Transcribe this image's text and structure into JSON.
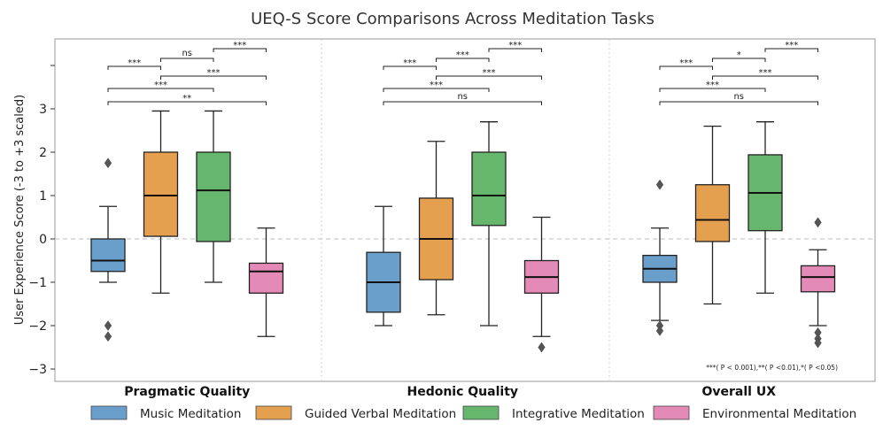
{
  "chart_data": {
    "type": "boxplot",
    "title": "UEQ-S Score Comparisons Across Meditation Tasks",
    "ylabel": "User Experience Score (-3 to +3 scaled)",
    "ylim": [
      -3.25,
      4.6
    ],
    "yticks": [
      3,
      2,
      1,
      0,
      -1,
      -2,
      -3
    ],
    "ytick_labels": [
      "3",
      "2",
      "1",
      "0",
      "−1",
      "−2",
      "−3"
    ],
    "grid": "dashed reference line at y=0, dotted vertical separators between groups",
    "legend_position": "bottom",
    "categories": [
      "Pragmatic Quality",
      "Hedonic Quality",
      "Overall UX"
    ],
    "series": [
      {
        "name": "Music Meditation",
        "color": "#6a9fcb"
      },
      {
        "name": "Guided Verbal Meditation",
        "color": "#e5a04f"
      },
      {
        "name": "Integrative Meditation",
        "color": "#66b66e"
      },
      {
        "name": "Environmental Meditation",
        "color": "#e48ab6"
      }
    ],
    "boxes": [
      [
        {
          "q1": -0.75,
          "median": -0.5,
          "q3": 0.0,
          "wlow": -1.0,
          "whigh": 0.75,
          "fliers": [
            1.75,
            -2.0,
            -2.25
          ]
        },
        {
          "q1": 0.06,
          "median": 1.0,
          "q3": 2.0,
          "wlow": -1.25,
          "whigh": 2.95,
          "fliers": []
        },
        {
          "q1": -0.06,
          "median": 1.12,
          "q3": 2.0,
          "wlow": -1.0,
          "whigh": 2.95,
          "fliers": []
        },
        {
          "q1": -1.25,
          "median": -0.75,
          "q3": -0.56,
          "wlow": -2.25,
          "whigh": 0.25,
          "fliers": []
        }
      ],
      [
        {
          "q1": -1.69,
          "median": -1.0,
          "q3": -0.31,
          "wlow": -2.0,
          "whigh": 0.75,
          "fliers": []
        },
        {
          "q1": -0.94,
          "median": 0.0,
          "q3": 0.94,
          "wlow": -1.75,
          "whigh": 2.25,
          "fliers": []
        },
        {
          "q1": 0.31,
          "median": 1.0,
          "q3": 2.0,
          "wlow": -2.0,
          "whigh": 2.7,
          "fliers": []
        },
        {
          "q1": -1.25,
          "median": -0.88,
          "q3": -0.5,
          "wlow": -2.25,
          "whigh": 0.5,
          "fliers": [
            -2.5
          ]
        }
      ],
      [
        {
          "q1": -1.0,
          "median": -0.69,
          "q3": -0.38,
          "wlow": -1.88,
          "whigh": 0.25,
          "fliers": [
            1.25,
            -2.0,
            -2.12
          ]
        },
        {
          "q1": -0.06,
          "median": 0.44,
          "q3": 1.25,
          "wlow": -1.5,
          "whigh": 2.6,
          "fliers": []
        },
        {
          "q1": 0.19,
          "median": 1.06,
          "q3": 1.94,
          "wlow": -1.25,
          "whigh": 2.7,
          "fliers": []
        },
        {
          "q1": -1.22,
          "median": -0.88,
          "q3": -0.62,
          "wlow": -2.0,
          "whigh": -0.25,
          "fliers": [
            0.38,
            -2.16,
            -2.3,
            -2.4
          ]
        }
      ]
    ],
    "significance": [
      [
        {
          "from": 0,
          "to": 1,
          "level": 1,
          "label": "***"
        },
        {
          "from": 1,
          "to": 2,
          "level": 2,
          "label": "ns"
        },
        {
          "from": 2,
          "to": 3,
          "level": 3,
          "label": "***"
        },
        {
          "from": 1,
          "to": 3,
          "level": 0,
          "label": "***"
        },
        {
          "from": 0,
          "to": 2,
          "level": -1,
          "label": "***"
        },
        {
          "from": 0,
          "to": 3,
          "level": -2,
          "label": "**"
        }
      ],
      [
        {
          "from": 0,
          "to": 1,
          "level": 1,
          "label": "***"
        },
        {
          "from": 1,
          "to": 2,
          "level": 2,
          "label": "***"
        },
        {
          "from": 2,
          "to": 3,
          "level": 3,
          "label": "***"
        },
        {
          "from": 1,
          "to": 3,
          "level": 0,
          "label": "***"
        },
        {
          "from": 0,
          "to": 2,
          "level": -1,
          "label": "***"
        },
        {
          "from": 0,
          "to": 3,
          "level": -2,
          "label": "ns"
        }
      ],
      [
        {
          "from": 0,
          "to": 1,
          "level": 1,
          "label": "***"
        },
        {
          "from": 1,
          "to": 2,
          "level": 2,
          "label": "*"
        },
        {
          "from": 2,
          "to": 3,
          "level": 3,
          "label": "***"
        },
        {
          "from": 1,
          "to": 3,
          "level": 0,
          "label": "***"
        },
        {
          "from": 0,
          "to": 2,
          "level": -1,
          "label": "***"
        },
        {
          "from": 0,
          "to": 3,
          "level": -2,
          "label": "ns"
        }
      ]
    ],
    "annotation": "***( P < 0.001),**( P <0.01),*( P <0.05)"
  }
}
